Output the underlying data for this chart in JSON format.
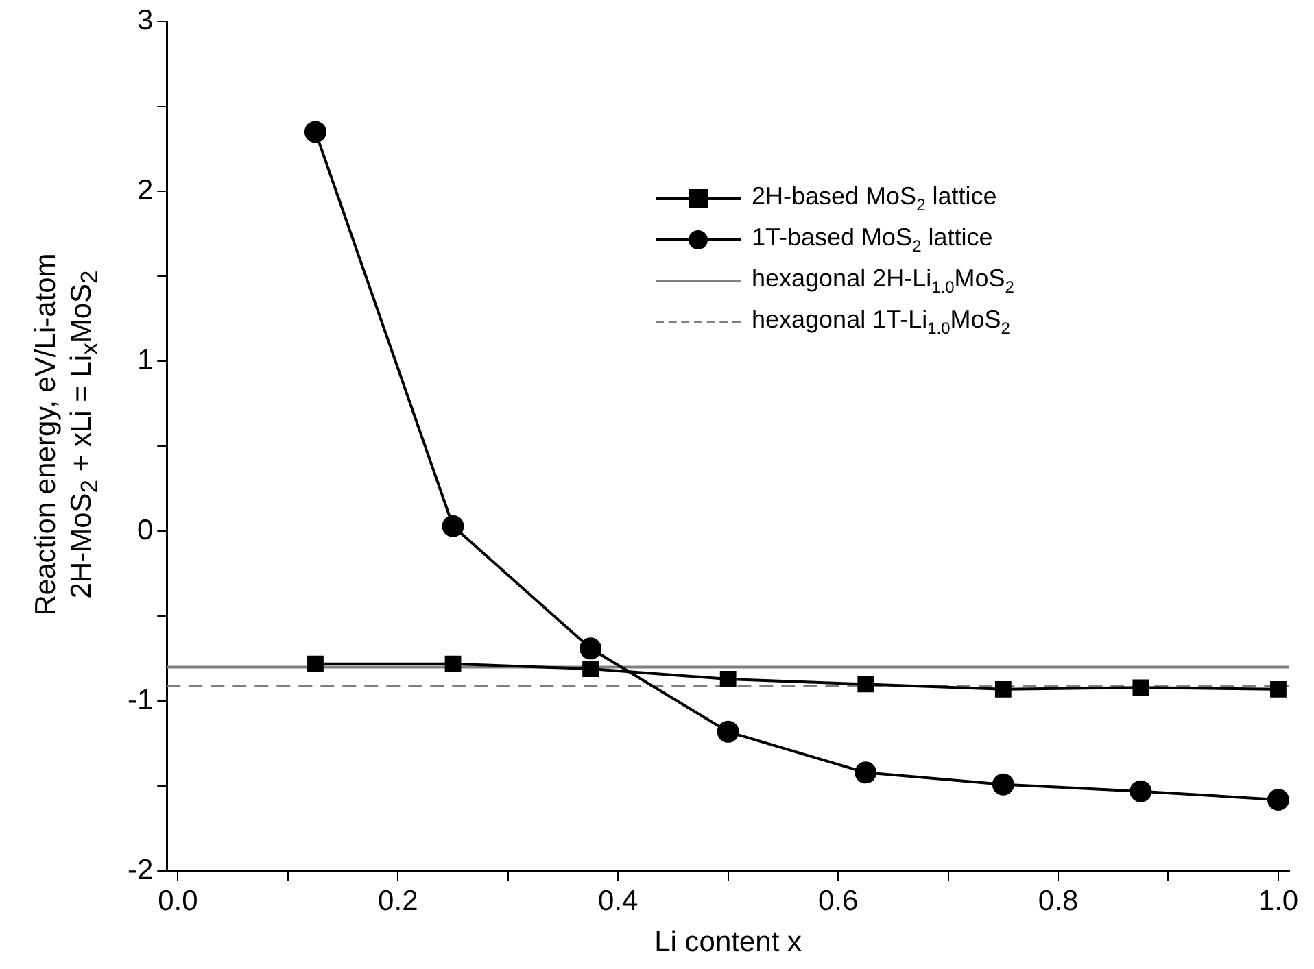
{
  "chart_data": {
    "type": "line",
    "xlabel": "Li content x",
    "ylabel": "Reaction energy, eV/Li-atom\n2H-MoS$_{2}$ + xLi = Li$_{x}$MoS$_{2}$",
    "x": [
      0.125,
      0.25,
      0.375,
      0.5,
      0.625,
      0.75,
      0.875,
      1.0
    ],
    "series": [
      {
        "name": "2H-based MoS$_{2}$ lattice",
        "color": "#000000",
        "marker": "square",
        "values": [
          -0.78,
          -0.78,
          -0.81,
          -0.87,
          -0.9,
          -0.93,
          -0.92,
          -0.93
        ]
      },
      {
        "name": "1T-based MoS$_{2}$ lattice",
        "color": "#000000",
        "marker": "circle",
        "values": [
          2.35,
          0.03,
          -0.69,
          -1.18,
          -1.42,
          -1.49,
          -1.53,
          -1.58
        ]
      }
    ],
    "ref_lines": [
      {
        "axis": "y",
        "value": -0.8,
        "label": "hexagonal 2H-Li$_{1.0}$MoS$_{2}$",
        "color": "#808080",
        "line_style": "solid"
      },
      {
        "axis": "y",
        "value": -0.91,
        "label": "hexagonal 1T-Li$_{1.0}$MoS$_{2}$",
        "color": "#808080",
        "line_style": "dashed"
      }
    ],
    "xlim": [
      -0.01,
      1.01
    ],
    "xticks": [
      {
        "value": 0.0,
        "label": "0.0"
      },
      {
        "value": 0.1,
        "label": null
      },
      {
        "value": 0.2,
        "label": "0.2"
      },
      {
        "value": 0.3,
        "label": null
      },
      {
        "value": 0.4,
        "label": "0.4"
      },
      {
        "value": 0.5,
        "label": null
      },
      {
        "value": 0.6,
        "label": "0.6"
      },
      {
        "value": 0.7,
        "label": null
      },
      {
        "value": 0.8,
        "label": "0.8"
      },
      {
        "value": 0.9,
        "label": null
      },
      {
        "value": 1.0,
        "label": "1.0"
      }
    ],
    "ylim": [
      -2,
      3
    ],
    "yticks": [
      -2,
      {
        "value": -1.5,
        "label": null
      },
      -1,
      {
        "value": -0.5,
        "label": null
      },
      0,
      {
        "value": 0.5,
        "label": null
      },
      1,
      {
        "value": 1.5,
        "label": null
      },
      2,
      {
        "value": 2.5,
        "label": null
      },
      3
    ],
    "grid": false,
    "legend": "top right"
  }
}
